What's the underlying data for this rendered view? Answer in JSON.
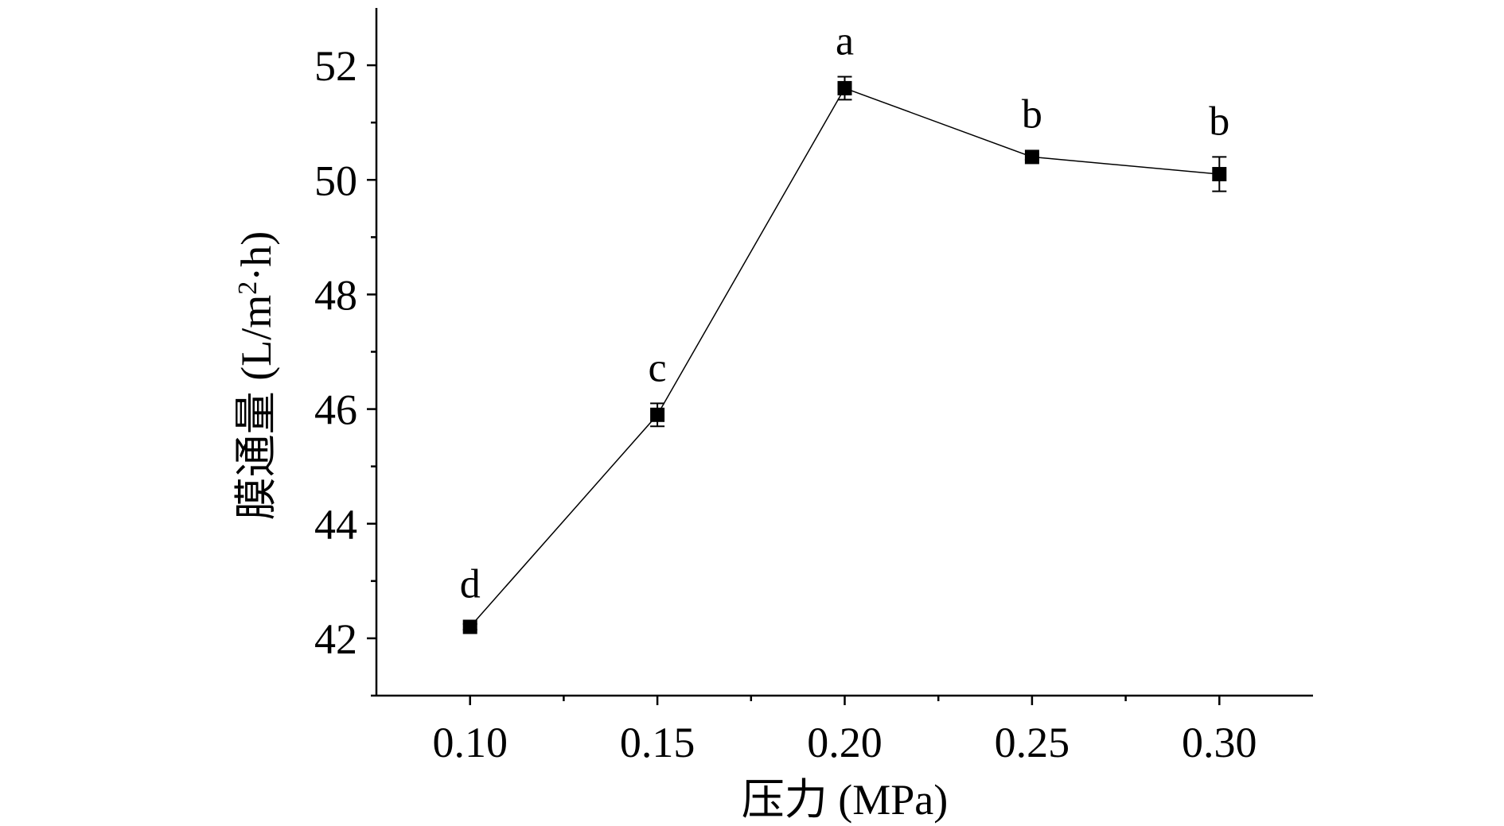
{
  "chart_data": {
    "type": "line",
    "xlabel": "压力 (MPa)",
    "ylabel_main": "膜通量 (L/m",
    "ylabel_sup": "2",
    "ylabel_tail": "·h)",
    "xlim": [
      0.075,
      0.325
    ],
    "ylim": [
      41,
      53
    ],
    "x_ticks": [
      "0.10",
      "0.15",
      "0.20",
      "0.25",
      "0.30"
    ],
    "y_ticks": [
      "42",
      "44",
      "46",
      "48",
      "50",
      "52"
    ],
    "x_tick_values": [
      0.1,
      0.15,
      0.2,
      0.25,
      0.3
    ],
    "y_tick_values": [
      42,
      44,
      46,
      48,
      50,
      52
    ],
    "x_minor_values": [
      0.125,
      0.175,
      0.225,
      0.275
    ],
    "y_minor_values": [
      41,
      43,
      45,
      47,
      49,
      51
    ],
    "grid": false,
    "series": [
      {
        "x": [
          0.1,
          0.15,
          0.2,
          0.25,
          0.3
        ],
        "values": [
          42.2,
          45.9,
          51.6,
          50.4,
          50.1
        ],
        "error": [
          0.05,
          0.2,
          0.2,
          0.05,
          0.3
        ],
        "labels": [
          "d",
          "c",
          "a",
          "b",
          "b"
        ]
      }
    ]
  }
}
